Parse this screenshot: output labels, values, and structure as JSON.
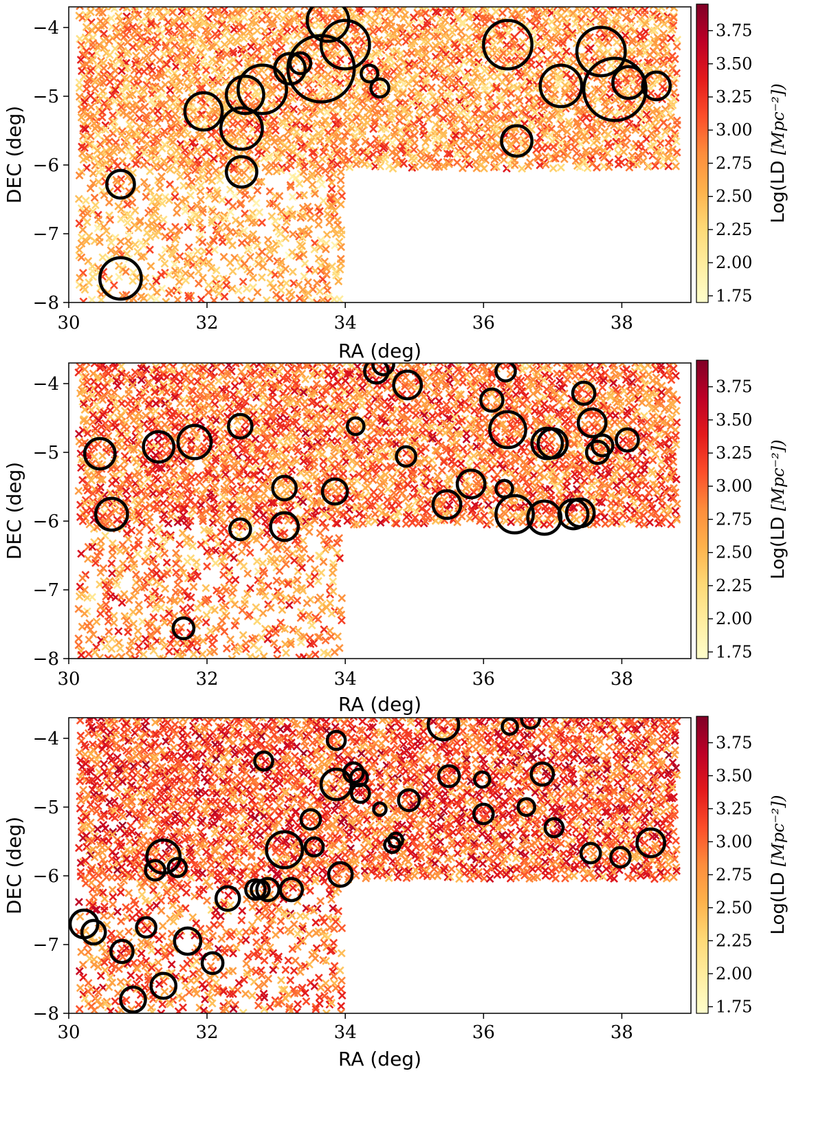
{
  "figure": {
    "colormap": [
      "#ffffcc",
      "#ffeda0",
      "#fed976",
      "#feb24c",
      "#fd8d3c",
      "#fc4e2a",
      "#e31a1c",
      "#bd0026",
      "#800026"
    ]
  },
  "chart_data": [
    {
      "type": "scatter",
      "title": "",
      "xlabel": "RA (deg)",
      "ylabel": "DEC (deg)",
      "xlim": [
        30,
        39
      ],
      "ylim": [
        -8,
        -3.7
      ],
      "xticks": [
        30,
        32,
        34,
        36,
        38
      ],
      "yticks": [
        -8,
        -7,
        -6,
        -5,
        -4
      ],
      "xtick_labels": [
        "30",
        "32",
        "34",
        "36",
        "38"
      ],
      "ytick_labels": [
        "−8",
        "−7",
        "−6",
        "−5",
        "−4"
      ],
      "colorbar": {
        "label": "Log(LD",
        "unit": "[Mpc⁻²])",
        "range": [
          1.7,
          3.95
        ],
        "ticks": [
          "1.75",
          "2.00",
          "2.25",
          "2.50",
          "2.75",
          "3.00",
          "3.25",
          "3.50",
          "3.75"
        ]
      },
      "density_mean": 2.7,
      "circles": [
        {
          "ra": 30.75,
          "dec": -6.28,
          "r": 0.2
        },
        {
          "ra": 30.75,
          "dec": -7.65,
          "r": 0.3
        },
        {
          "ra": 31.95,
          "dec": -5.22,
          "r": 0.27
        },
        {
          "ra": 32.5,
          "dec": -6.1,
          "r": 0.22
        },
        {
          "ra": 32.5,
          "dec": -5.47,
          "r": 0.3
        },
        {
          "ra": 32.55,
          "dec": -4.98,
          "r": 0.27
        },
        {
          "ra": 32.8,
          "dec": -4.9,
          "r": 0.35
        },
        {
          "ra": 33.2,
          "dec": -4.6,
          "r": 0.22
        },
        {
          "ra": 33.35,
          "dec": -4.52,
          "r": 0.15
        },
        {
          "ra": 33.65,
          "dec": -4.6,
          "r": 0.48
        },
        {
          "ra": 33.75,
          "dec": -3.9,
          "r": 0.3
        },
        {
          "ra": 34.0,
          "dec": -4.25,
          "r": 0.35
        },
        {
          "ra": 34.35,
          "dec": -4.67,
          "r": 0.12
        },
        {
          "ra": 34.5,
          "dec": -4.88,
          "r": 0.13
        },
        {
          "ra": 36.35,
          "dec": -4.25,
          "r": 0.35
        },
        {
          "ra": 36.48,
          "dec": -5.65,
          "r": 0.22
        },
        {
          "ra": 37.12,
          "dec": -4.85,
          "r": 0.3
        },
        {
          "ra": 37.7,
          "dec": -4.35,
          "r": 0.35
        },
        {
          "ra": 37.9,
          "dec": -4.9,
          "r": 0.45
        },
        {
          "ra": 38.1,
          "dec": -4.8,
          "r": 0.23
        },
        {
          "ra": 38.5,
          "dec": -4.85,
          "r": 0.2
        }
      ]
    },
    {
      "type": "scatter",
      "title": "",
      "xlabel": "RA (deg)",
      "ylabel": "DEC (deg)",
      "xlim": [
        30,
        39
      ],
      "ylim": [
        -8,
        -3.7
      ],
      "xticks": [
        30,
        32,
        34,
        36,
        38
      ],
      "yticks": [
        -8,
        -7,
        -6,
        -5,
        -4
      ],
      "xtick_labels": [
        "30",
        "32",
        "34",
        "36",
        "38"
      ],
      "ytick_labels": [
        "−8",
        "−7",
        "−6",
        "−5",
        "−4"
      ],
      "colorbar": {
        "label": "Log(LD",
        "unit": "[Mpc⁻²])",
        "range": [
          1.7,
          3.95
        ],
        "ticks": [
          "1.75",
          "2.00",
          "2.25",
          "2.50",
          "2.75",
          "3.00",
          "3.25",
          "3.50",
          "3.75"
        ]
      },
      "density_mean": 2.95,
      "circles": [
        {
          "ra": 30.45,
          "dec": -5.02,
          "r": 0.22
        },
        {
          "ra": 30.62,
          "dec": -5.9,
          "r": 0.23
        },
        {
          "ra": 31.3,
          "dec": -4.92,
          "r": 0.22
        },
        {
          "ra": 31.82,
          "dec": -4.85,
          "r": 0.24
        },
        {
          "ra": 32.48,
          "dec": -4.62,
          "r": 0.17
        },
        {
          "ra": 32.48,
          "dec": -6.12,
          "r": 0.15
        },
        {
          "ra": 31.66,
          "dec": -7.56,
          "r": 0.15
        },
        {
          "ra": 33.12,
          "dec": -5.52,
          "r": 0.17
        },
        {
          "ra": 33.12,
          "dec": -6.08,
          "r": 0.2
        },
        {
          "ra": 33.85,
          "dec": -5.57,
          "r": 0.18
        },
        {
          "ra": 34.15,
          "dec": -4.62,
          "r": 0.12
        },
        {
          "ra": 34.45,
          "dec": -3.82,
          "r": 0.17
        },
        {
          "ra": 34.55,
          "dec": -3.72,
          "r": 0.15
        },
        {
          "ra": 34.9,
          "dec": -4.02,
          "r": 0.2
        },
        {
          "ra": 34.88,
          "dec": -5.06,
          "r": 0.14
        },
        {
          "ra": 35.47,
          "dec": -5.76,
          "r": 0.2
        },
        {
          "ra": 35.82,
          "dec": -5.46,
          "r": 0.2
        },
        {
          "ra": 36.12,
          "dec": -4.24,
          "r": 0.16
        },
        {
          "ra": 36.32,
          "dec": -3.82,
          "r": 0.14
        },
        {
          "ra": 36.35,
          "dec": -4.67,
          "r": 0.26
        },
        {
          "ra": 36.3,
          "dec": -5.53,
          "r": 0.12
        },
        {
          "ra": 36.45,
          "dec": -5.9,
          "r": 0.27
        },
        {
          "ra": 36.88,
          "dec": -5.95,
          "r": 0.24
        },
        {
          "ra": 36.92,
          "dec": -4.87,
          "r": 0.22
        },
        {
          "ra": 37.0,
          "dec": -4.87,
          "r": 0.21
        },
        {
          "ra": 37.3,
          "dec": -5.9,
          "r": 0.21
        },
        {
          "ra": 37.4,
          "dec": -5.88,
          "r": 0.2
        },
        {
          "ra": 37.45,
          "dec": -4.14,
          "r": 0.16
        },
        {
          "ra": 37.57,
          "dec": -4.57,
          "r": 0.2
        },
        {
          "ra": 37.65,
          "dec": -5.0,
          "r": 0.16
        },
        {
          "ra": 37.72,
          "dec": -4.9,
          "r": 0.15
        },
        {
          "ra": 38.08,
          "dec": -4.82,
          "r": 0.16
        }
      ]
    },
    {
      "type": "scatter",
      "title": "",
      "xlabel": "RA (deg)",
      "ylabel": "DEC (deg)",
      "xlim": [
        30,
        39
      ],
      "ylim": [
        -8,
        -3.7
      ],
      "xticks": [
        30,
        32,
        34,
        36,
        38
      ],
      "yticks": [
        -8,
        -7,
        -6,
        -5,
        -4
      ],
      "xtick_labels": [
        "30",
        "32",
        "34",
        "36",
        "38"
      ],
      "ytick_labels": [
        "−8",
        "−7",
        "−6",
        "−5",
        "−4"
      ],
      "colorbar": {
        "label": "Log(LD",
        "unit": "[Mpc⁻²])",
        "range": [
          1.7,
          3.95
        ],
        "ticks": [
          "1.75",
          "2.00",
          "2.25",
          "2.50",
          "2.75",
          "3.00",
          "3.25",
          "3.50",
          "3.75"
        ]
      },
      "density_mean": 3.1,
      "circles": [
        {
          "ra": 30.22,
          "dec": -6.7,
          "r": 0.2
        },
        {
          "ra": 30.36,
          "dec": -6.82,
          "r": 0.17
        },
        {
          "ra": 30.77,
          "dec": -7.1,
          "r": 0.16
        },
        {
          "ra": 30.93,
          "dec": -7.8,
          "r": 0.18
        },
        {
          "ra": 31.12,
          "dec": -6.75,
          "r": 0.14
        },
        {
          "ra": 31.25,
          "dec": -5.92,
          "r": 0.14
        },
        {
          "ra": 31.37,
          "dec": -5.72,
          "r": 0.24
        },
        {
          "ra": 31.37,
          "dec": -7.6,
          "r": 0.18
        },
        {
          "ra": 31.57,
          "dec": -5.88,
          "r": 0.13
        },
        {
          "ra": 31.72,
          "dec": -6.95,
          "r": 0.19
        },
        {
          "ra": 32.08,
          "dec": -7.27,
          "r": 0.15
        },
        {
          "ra": 32.3,
          "dec": -6.33,
          "r": 0.17
        },
        {
          "ra": 32.7,
          "dec": -6.2,
          "r": 0.14
        },
        {
          "ra": 32.77,
          "dec": -6.2,
          "r": 0.13
        },
        {
          "ra": 32.82,
          "dec": -4.33,
          "r": 0.13
        },
        {
          "ra": 32.88,
          "dec": -6.2,
          "r": 0.16
        },
        {
          "ra": 33.12,
          "dec": -5.62,
          "r": 0.26
        },
        {
          "ra": 33.22,
          "dec": -6.2,
          "r": 0.16
        },
        {
          "ra": 33.5,
          "dec": -5.18,
          "r": 0.14
        },
        {
          "ra": 33.55,
          "dec": -5.58,
          "r": 0.13
        },
        {
          "ra": 33.87,
          "dec": -4.03,
          "r": 0.13
        },
        {
          "ra": 33.87,
          "dec": -4.67,
          "r": 0.22
        },
        {
          "ra": 33.93,
          "dec": -5.98,
          "r": 0.17
        },
        {
          "ra": 34.12,
          "dec": -4.5,
          "r": 0.14
        },
        {
          "ra": 34.2,
          "dec": -4.57,
          "r": 0.12
        },
        {
          "ra": 34.22,
          "dec": -4.8,
          "r": 0.13
        },
        {
          "ra": 34.5,
          "dec": -5.03,
          "r": 0.09
        },
        {
          "ra": 34.68,
          "dec": -5.55,
          "r": 0.11
        },
        {
          "ra": 34.73,
          "dec": -5.48,
          "r": 0.1
        },
        {
          "ra": 34.92,
          "dec": -4.9,
          "r": 0.15
        },
        {
          "ra": 35.42,
          "dec": -3.8,
          "r": 0.22
        },
        {
          "ra": 35.5,
          "dec": -4.55,
          "r": 0.15
        },
        {
          "ra": 35.98,
          "dec": -4.6,
          "r": 0.11
        },
        {
          "ra": 36.0,
          "dec": -5.1,
          "r": 0.14
        },
        {
          "ra": 36.38,
          "dec": -3.83,
          "r": 0.11
        },
        {
          "ra": 36.62,
          "dec": -5.0,
          "r": 0.12
        },
        {
          "ra": 36.68,
          "dec": -3.72,
          "r": 0.13
        },
        {
          "ra": 36.85,
          "dec": -4.52,
          "r": 0.16
        },
        {
          "ra": 37.02,
          "dec": -5.3,
          "r": 0.13
        },
        {
          "ra": 37.55,
          "dec": -5.67,
          "r": 0.14
        },
        {
          "ra": 37.98,
          "dec": -5.73,
          "r": 0.14
        },
        {
          "ra": 38.42,
          "dec": -5.52,
          "r": 0.2
        }
      ]
    }
  ]
}
